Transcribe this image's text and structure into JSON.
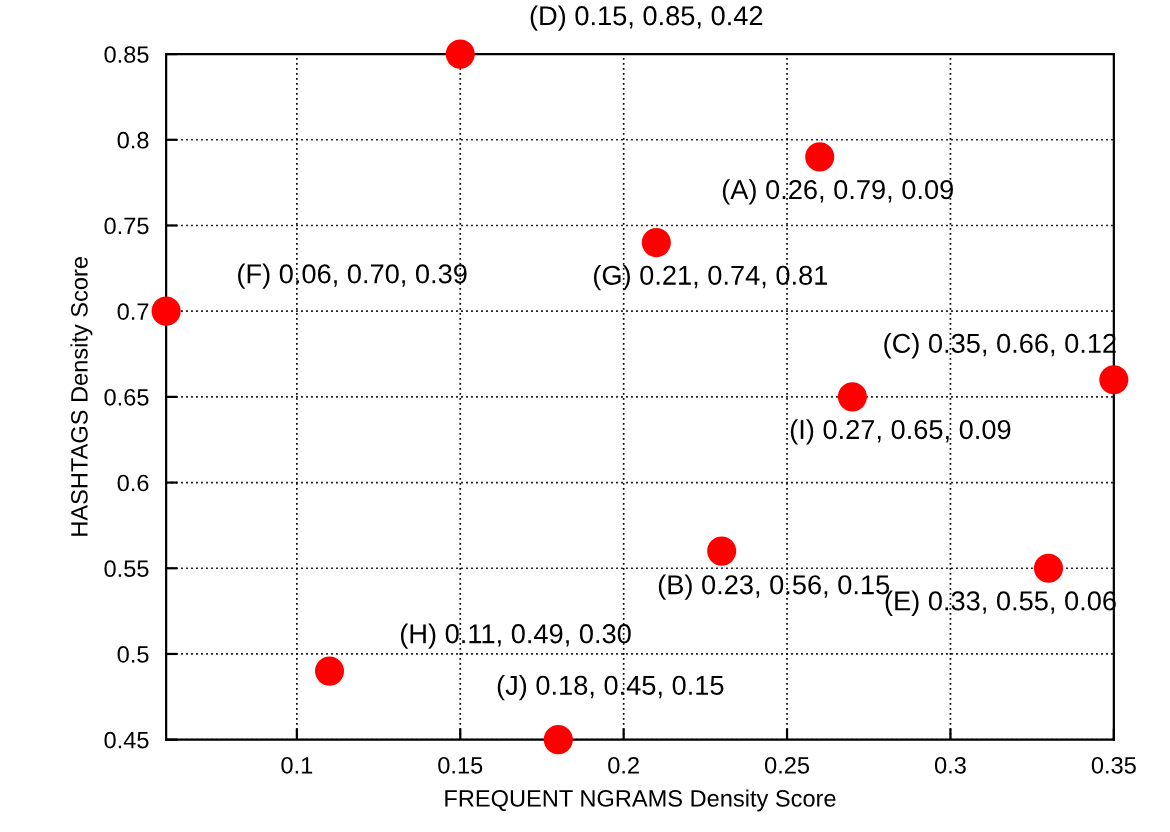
{
  "chart_data": {
    "type": "scatter",
    "xlabel": "FREQUENT NGRAMS Density Score",
    "ylabel": "HASHTAGS Density Score",
    "x": [
      0.26,
      0.23,
      0.35,
      0.15,
      0.33,
      0.06,
      0.21,
      0.11,
      0.27,
      0.18
    ],
    "values": [
      0.79,
      0.56,
      0.66,
      0.85,
      0.55,
      0.7,
      0.74,
      0.49,
      0.65,
      0.45
    ],
    "color": "#ff0000",
    "marker": "circle",
    "xlim": [
      0.06,
      0.35
    ],
    "xticks": [
      0.1,
      0.15,
      0.2,
      0.25,
      0.3,
      0.35
    ],
    "ylim": [
      0.45,
      0.85
    ],
    "yticks": [
      0.45,
      0.5,
      0.55,
      0.6,
      0.65,
      0.7,
      0.75,
      0.8,
      0.85
    ],
    "grid": true,
    "annotations": [
      {
        "text": "(A) 0.26, 0.79, 0.09",
        "x": 0.26,
        "y": 0.79
      },
      {
        "text": "(B) 0.23, 0.56, 0.15",
        "x": 0.23,
        "y": 0.56
      },
      {
        "text": "(C) 0.35, 0.66, 0.12",
        "x": 0.35,
        "y": 0.66
      },
      {
        "text": "(D) 0.15, 0.85, 0.42",
        "x": 0.15,
        "y": 0.85
      },
      {
        "text": "(E) 0.33, 0.55, 0.06",
        "x": 0.33,
        "y": 0.55
      },
      {
        "text": "(F) 0.06, 0.70, 0.39",
        "x": 0.06,
        "y": 0.7
      },
      {
        "text": "(G) 0.21, 0.74, 0.81",
        "x": 0.21,
        "y": 0.74
      },
      {
        "text": "(H) 0.11, 0.49, 0.30",
        "x": 0.11,
        "y": 0.49
      },
      {
        "text": "(I) 0.27, 0.65, 0.09",
        "x": 0.27,
        "y": 0.65
      },
      {
        "text": "(J) 0.18, 0.45, 0.15",
        "x": 0.18,
        "y": 0.45
      }
    ]
  }
}
